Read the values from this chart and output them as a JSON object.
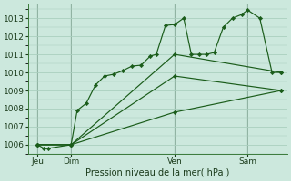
{
  "xlabel": "Pression niveau de la mer( hPa )",
  "bg_color": "#cce8dd",
  "grid_color": "#aacfbf",
  "line_color": "#1a5c1a",
  "marker_color": "#1a5c1a",
  "ylim": [
    1005.5,
    1013.8
  ],
  "xlim": [
    0,
    8.5
  ],
  "yticks": [
    1006,
    1007,
    1008,
    1009,
    1010,
    1011,
    1012,
    1013
  ],
  "day_positions": [
    0.3,
    1.4,
    4.8,
    7.2
  ],
  "day_labels": [
    "Jeu",
    "Dim",
    "Ven",
    "Sam"
  ],
  "vline_positions": [
    0.3,
    1.4,
    4.8,
    7.2
  ],
  "lines": [
    {
      "x": [
        0.3,
        0.5,
        0.65,
        1.4,
        1.6,
        1.9,
        2.2,
        2.5,
        2.8,
        3.1,
        3.4,
        3.7,
        4.0,
        4.2,
        4.5,
        4.8,
        5.1,
        5.35,
        5.6,
        5.85,
        6.1,
        6.4,
        6.7,
        7.0,
        7.2,
        7.6,
        8.0,
        8.3
      ],
      "y": [
        1006.0,
        1005.8,
        1005.8,
        1006.0,
        1007.9,
        1008.3,
        1009.3,
        1009.8,
        1009.9,
        1010.1,
        1010.35,
        1010.4,
        1010.9,
        1011.0,
        1012.6,
        1012.65,
        1013.0,
        1011.0,
        1011.0,
        1011.0,
        1011.1,
        1012.5,
        1013.0,
        1013.2,
        1013.45,
        1013.0,
        1010.0,
        1010.0
      ],
      "marker": true
    },
    {
      "x": [
        0.3,
        1.4,
        4.8,
        8.3
      ],
      "y": [
        1006.0,
        1006.0,
        1011.0,
        1010.0
      ],
      "marker": true
    },
    {
      "x": [
        0.3,
        1.4,
        4.8,
        8.3
      ],
      "y": [
        1006.0,
        1006.0,
        1009.8,
        1009.0
      ],
      "marker": true
    },
    {
      "x": [
        0.3,
        1.4,
        4.8,
        8.3
      ],
      "y": [
        1006.0,
        1006.0,
        1007.8,
        1009.0
      ],
      "marker": true
    }
  ]
}
